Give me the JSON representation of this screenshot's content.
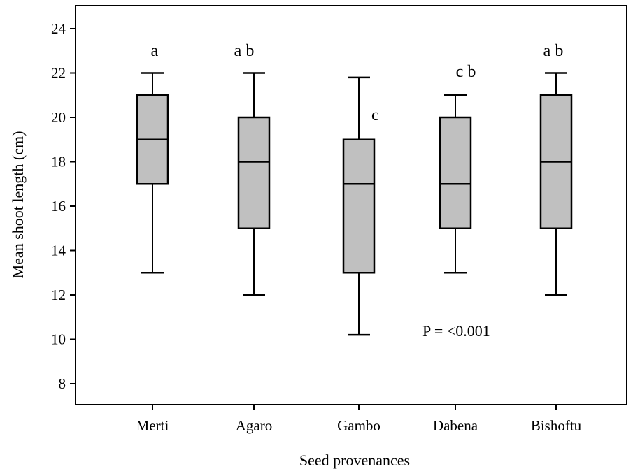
{
  "chart_data": {
    "type": "boxplot",
    "xlabel": "Seed provenances",
    "ylabel": "Mean shoot length (cm)",
    "ylim": [
      7,
      25
    ],
    "yticks": [
      8,
      10,
      12,
      14,
      16,
      18,
      20,
      22,
      24
    ],
    "grid": false,
    "categories": [
      "Merti",
      "Agaro",
      "Gambo",
      "Dabena",
      "Bishoftu"
    ],
    "boxes": [
      {
        "min": 13,
        "q1": 17,
        "median": 19,
        "q3": 21,
        "max": 22
      },
      {
        "min": 12,
        "q1": 15,
        "median": 18,
        "q3": 20,
        "max": 22
      },
      {
        "min": 10.2,
        "q1": 13,
        "median": 17,
        "q3": 19,
        "max": 21.8
      },
      {
        "min": 13,
        "q1": 15,
        "median": 17,
        "q3": 20,
        "max": 21
      },
      {
        "min": 12,
        "q1": 15,
        "median": 18,
        "q3": 21,
        "max": 22
      }
    ],
    "significance_letters": [
      "a",
      "a b",
      "c",
      "c b",
      "a b"
    ],
    "annotation": "P = <0.001",
    "box_color": "#c0c0c0"
  }
}
